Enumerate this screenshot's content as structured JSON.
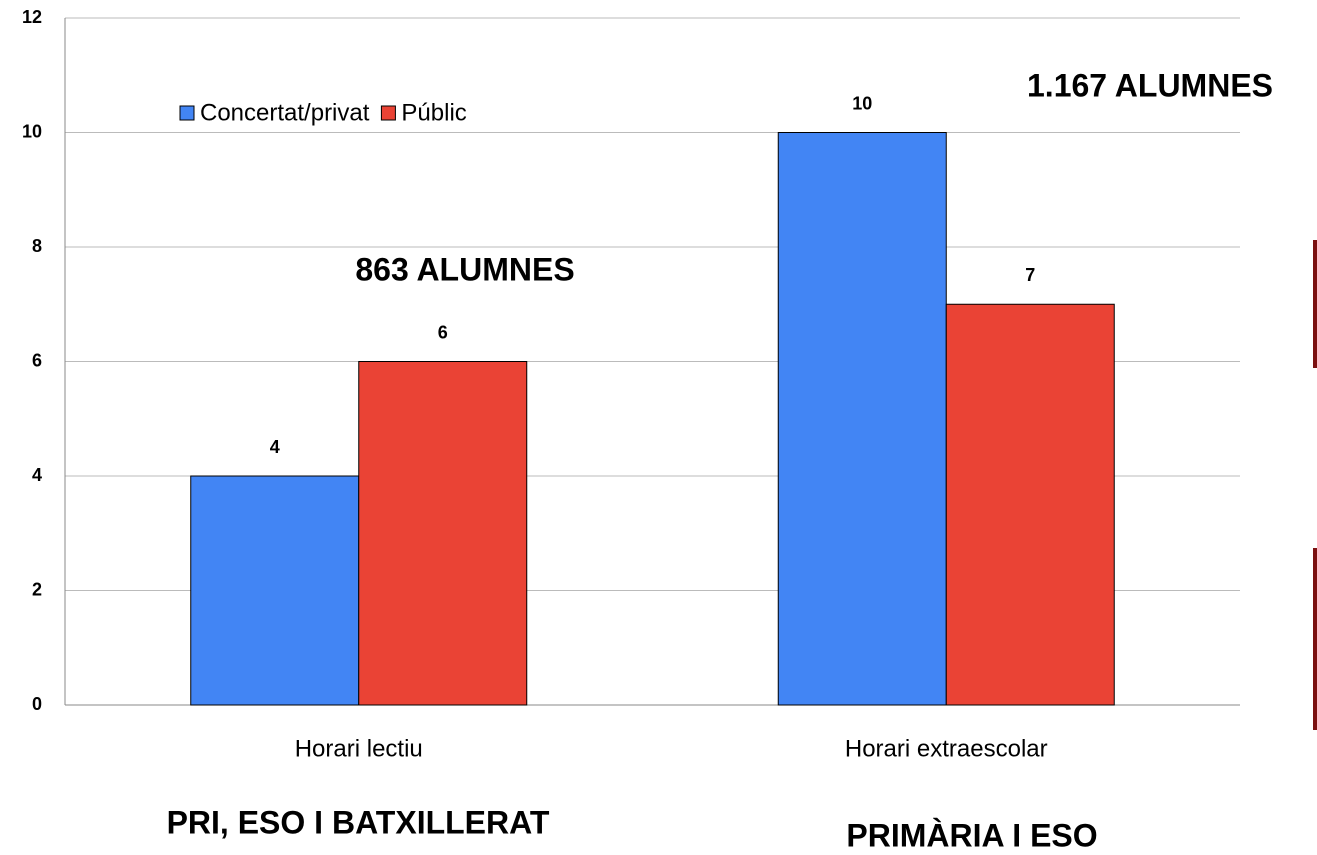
{
  "chart_data": {
    "type": "bar",
    "categories": [
      "Horari lectiu",
      "Horari extraescolar"
    ],
    "series": [
      {
        "name": "Concertat/privat",
        "color": "#4285f4",
        "values": [
          4,
          10
        ]
      },
      {
        "name": "Públic",
        "color": "#ea4335",
        "values": [
          6,
          7
        ]
      }
    ],
    "ylim": [
      0,
      12
    ],
    "yticks": [
      0,
      2,
      4,
      6,
      8,
      10,
      12
    ],
    "grid": true,
    "annotations": [
      "863 ALUMNES",
      "1.167 ALUMNES",
      "PRI, ESO I BATXILLERAT",
      "PRIMÀRIA I ESO"
    ]
  }
}
